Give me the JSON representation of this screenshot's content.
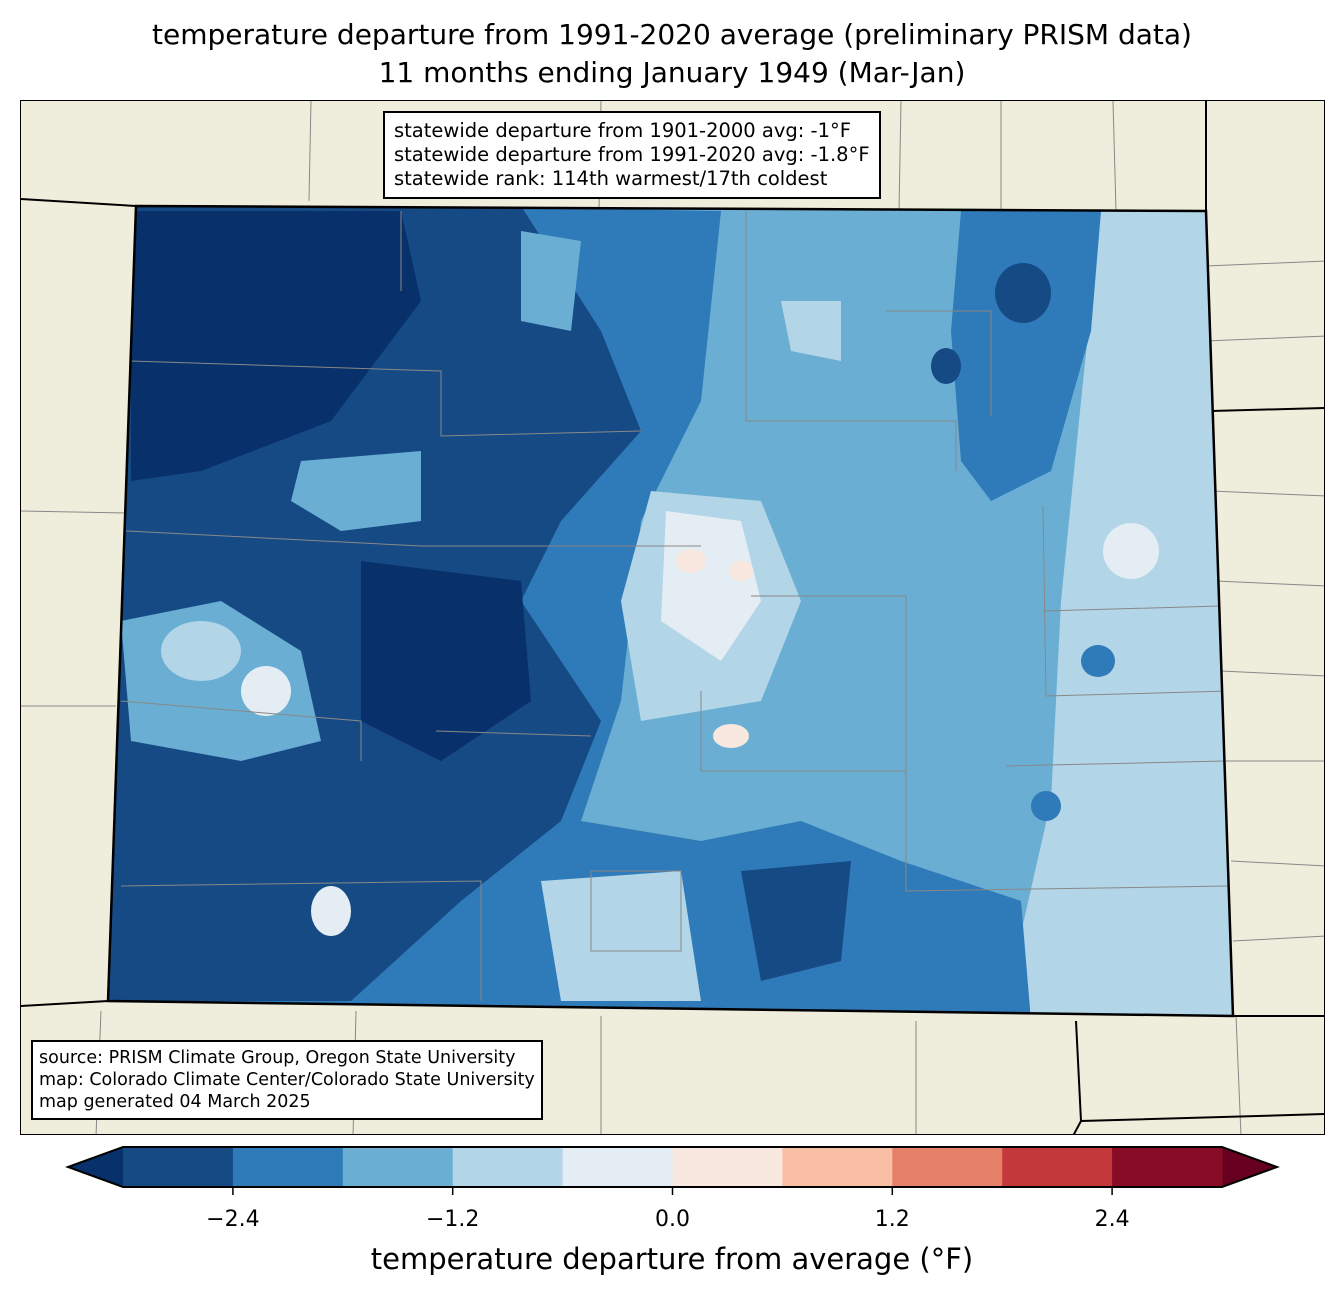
{
  "title": {
    "line1": "temperature departure from 1991-2020 average (preliminary PRISM data)",
    "line2": "11 months ending January 1949 (Mar-Jan)"
  },
  "stats": {
    "line1": "statewide departure from 1901-2000 avg: -1°F",
    "line2": "statewide departure from 1991-2020 avg: -1.8°F",
    "line3": "statewide rank: 114th warmest/17th coldest"
  },
  "source": {
    "line1": "source: PRISM Climate Group, Oregon State University",
    "line2": "map: Colorado Climate Center/Colorado State University",
    "line3": "map generated 04 March 2025"
  },
  "colorbar": {
    "label": "temperature departure from average (°F)",
    "bounds": [
      -3.0,
      3.0
    ],
    "step": 0.6,
    "under_color": "#08306b",
    "over_color": "#67001f",
    "colors": [
      "#154a85",
      "#2f7ab8",
      "#6aaed3",
      "#b2d5e7",
      "#e4edf4",
      "#f9e8df",
      "#f9bfa4",
      "#e38067",
      "#c3393b",
      "#890c26"
    ],
    "ticks": [
      "−2.4",
      "−1.2",
      "0.0",
      "1.2",
      "2.4"
    ],
    "tick_values": [
      -2.4,
      -1.2,
      0.0,
      1.2,
      2.4
    ]
  },
  "map": {
    "land_color": "#efeedc",
    "state_base_color": "#6aaed3"
  }
}
